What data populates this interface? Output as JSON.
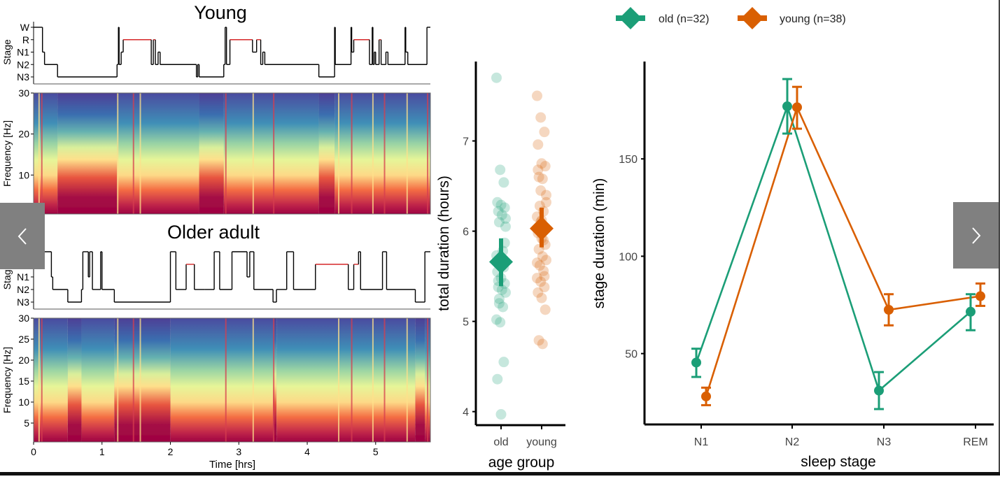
{
  "figure": {
    "left_panel": {
      "young": {
        "title": "Young",
        "hypnogram": {
          "ylabel": "Stage",
          "stages": [
            "W",
            "R",
            "N1",
            "N2",
            "N3"
          ],
          "segments": [
            [
              0.0,
              "W"
            ],
            [
              0.13,
              "N1"
            ],
            [
              0.16,
              "N2"
            ],
            [
              0.35,
              "N3"
            ],
            [
              1.22,
              "N2"
            ],
            [
              1.24,
              "W"
            ],
            [
              1.25,
              "N2"
            ],
            [
              1.28,
              "N1"
            ],
            [
              1.31,
              "R"
            ],
            [
              1.72,
              "N2"
            ],
            [
              1.75,
              "R"
            ],
            [
              1.78,
              "N2"
            ],
            [
              1.82,
              "N1"
            ],
            [
              1.85,
              "N2"
            ],
            [
              2.38,
              "N3"
            ],
            [
              2.4,
              "N2"
            ],
            [
              2.42,
              "N3"
            ],
            [
              2.78,
              "N2"
            ],
            [
              2.8,
              "W"
            ],
            [
              2.82,
              "N2"
            ],
            [
              2.87,
              "R"
            ],
            [
              3.2,
              "N1"
            ],
            [
              3.26,
              "R"
            ],
            [
              3.32,
              "N2"
            ],
            [
              3.35,
              "N1"
            ],
            [
              3.38,
              "N2"
            ],
            [
              4.17,
              "N3"
            ],
            [
              4.4,
              "W"
            ],
            [
              4.41,
              "N2"
            ],
            [
              4.64,
              "W"
            ],
            [
              4.65,
              "N1"
            ],
            [
              4.68,
              "R"
            ],
            [
              4.91,
              "N2"
            ],
            [
              4.95,
              "W"
            ],
            [
              4.96,
              "N2"
            ],
            [
              4.98,
              "N1"
            ],
            [
              5.0,
              "N2"
            ],
            [
              5.05,
              "R"
            ],
            [
              5.08,
              "N2"
            ],
            [
              5.15,
              "N1"
            ],
            [
              5.18,
              "N2"
            ],
            [
              5.43,
              "W"
            ],
            [
              5.44,
              "N1"
            ],
            [
              5.47,
              "N2"
            ],
            [
              5.75,
              "W"
            ],
            [
              5.8,
              "W"
            ]
          ],
          "rem_color": "#d62728"
        },
        "spectrogram": {
          "ylabel": "Frequency [Hz]",
          "yticks": [
            "10",
            "20",
            "30"
          ],
          "yrange": [
            0.5,
            30
          ],
          "deep_sleep_periods": [
            [
              0.35,
              1.22
            ],
            [
              2.42,
              2.78
            ],
            [
              4.17,
              4.4
            ]
          ]
        }
      },
      "older": {
        "title": "Older adult",
        "hypnogram": {
          "ylabel": "Stage",
          "stages": [
            "W",
            "R",
            "N1",
            "N2",
            "N3"
          ],
          "segments": [
            [
              0.0,
              "W"
            ],
            [
              0.26,
              "N1"
            ],
            [
              0.28,
              "N2"
            ],
            [
              0.5,
              "N3"
            ],
            [
              0.7,
              "N2"
            ],
            [
              0.72,
              "W"
            ],
            [
              0.8,
              "N1"
            ],
            [
              0.82,
              "W"
            ],
            [
              0.86,
              "N2"
            ],
            [
              0.98,
              "W"
            ],
            [
              1.0,
              "N2"
            ],
            [
              1.18,
              "N3"
            ],
            [
              2.0,
              "W"
            ],
            [
              2.08,
              "N2"
            ],
            [
              2.23,
              "R"
            ],
            [
              2.35,
              "N2"
            ],
            [
              2.5,
              "N2"
            ],
            [
              2.64,
              "W"
            ],
            [
              2.72,
              "N2"
            ],
            [
              2.9,
              "W"
            ],
            [
              3.12,
              "N1"
            ],
            [
              3.16,
              "W"
            ],
            [
              3.22,
              "N2"
            ],
            [
              3.5,
              "N3"
            ],
            [
              3.55,
              "N2"
            ],
            [
              3.7,
              "W"
            ],
            [
              3.8,
              "N2"
            ],
            [
              4.12,
              "R"
            ],
            [
              4.6,
              "N2"
            ],
            [
              4.68,
              "R"
            ],
            [
              4.75,
              "W"
            ],
            [
              4.78,
              "N2"
            ],
            [
              5.1,
              "W"
            ],
            [
              5.16,
              "N2"
            ],
            [
              5.58,
              "N3"
            ],
            [
              5.72,
              "W"
            ],
            [
              5.8,
              "W"
            ]
          ],
          "rem_color": "#d62728"
        },
        "spectrogram": {
          "ylabel": "Frequency [Hz]",
          "yticks": [
            "5",
            "10",
            "15",
            "20",
            "25",
            "30"
          ],
          "yrange": [
            0.5,
            30
          ],
          "deep_sleep_periods": [
            [
              0.5,
              0.7
            ],
            [
              1.18,
              2.0
            ],
            [
              3.5,
              3.55
            ],
            [
              5.58,
              5.72
            ]
          ]
        },
        "xlabel": "Time [hrs]",
        "xticks": [
          "0",
          "1",
          "2",
          "3",
          "4",
          "5"
        ],
        "xrange": [
          0,
          5.8
        ]
      }
    },
    "nav": {
      "prev_icon": "chevron-left-icon",
      "next_icon": "chevron-right-icon"
    }
  },
  "chart_data": [
    {
      "type": "scatter",
      "title": "",
      "xlabel": "age group",
      "ylabel": "total duration (hours)",
      "categories": [
        "old",
        "young"
      ],
      "yticks": [
        "4",
        "5",
        "6",
        "7"
      ],
      "ylim": [
        3.85,
        7.88
      ],
      "grid": false,
      "series": [
        {
          "name": "old",
          "color": "#1b9e77",
          "points": [
            7.7,
            6.68,
            6.54,
            6.32,
            6.29,
            6.26,
            6.22,
            6.18,
            6.14,
            6.1,
            5.78,
            5.73,
            5.68,
            5.6,
            5.55,
            5.48,
            5.42,
            5.38,
            5.35,
            5.32,
            5.2,
            5.16,
            5.02,
            4.99,
            4.55,
            4.36,
            3.97,
            5.87,
            5.45,
            5.62,
            6.05,
            5.25
          ],
          "mean": 5.66,
          "ci": [
            5.39,
            5.92
          ]
        },
        {
          "name": "young",
          "color": "#d95f02",
          "points": [
            7.5,
            7.26,
            7.1,
            6.96,
            6.75,
            6.72,
            6.6,
            6.58,
            6.32,
            6.28,
            6.22,
            6.16,
            6.1,
            6.05,
            5.98,
            5.92,
            5.85,
            5.8,
            5.72,
            5.68,
            5.62,
            5.56,
            5.48,
            5.44,
            5.38,
            5.32,
            5.26,
            5.13,
            4.79,
            4.75,
            6.4,
            6.0,
            5.9,
            5.65,
            6.45,
            5.5,
            6.68,
            6.12
          ],
          "mean": 6.03,
          "ci": [
            5.82,
            6.26
          ]
        }
      ]
    },
    {
      "type": "line",
      "title": "",
      "xlabel": "sleep stage",
      "ylabel": "stage duration (min)",
      "categories": [
        "N1",
        "N2",
        "N3",
        "REM"
      ],
      "yticks": [
        "50",
        "100",
        "150"
      ],
      "ylim": [
        13.6,
        200
      ],
      "grid": false,
      "legend": {
        "placement": "top",
        "entries": [
          "old (n=32)",
          "young (n=38)"
        ]
      },
      "series": [
        {
          "name": "old (n=32)",
          "color": "#1b9e77",
          "values": [
            45.4,
            177,
            31,
            71.5
          ],
          "err_low": [
            38,
            163,
            21.5,
            62
          ],
          "err_high": [
            52.5,
            191,
            40.5,
            80.5
          ]
        },
        {
          "name": "young (n=38)",
          "color": "#d95f02",
          "values": [
            28,
            176.5,
            72.5,
            79.5
          ],
          "err_low": [
            23.5,
            165.5,
            64.5,
            74.5
          ],
          "err_high": [
            32.5,
            187,
            80.5,
            86
          ]
        }
      ]
    }
  ]
}
